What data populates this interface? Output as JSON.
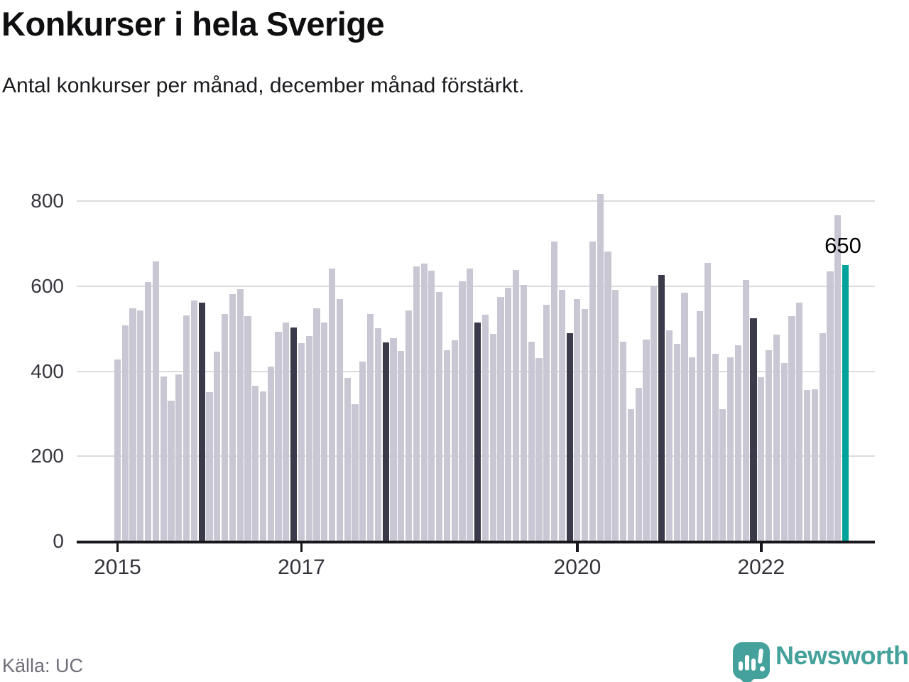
{
  "page": {
    "title": "Konkurser i hela Sverige",
    "subtitle": "Antal konkurser per månad, december månad förstärkt.",
    "source": "Källa: UC",
    "brand": "Newsworthy"
  },
  "chart_data": {
    "type": "bar",
    "title": "Konkurser i hela Sverige",
    "subtitle": "Antal konkurser per månad, december månad förstärkt.",
    "x_start_month": "2015-01",
    "x_frequency": "monthly",
    "values": [
      427,
      508,
      548,
      542,
      610,
      658,
      387,
      330,
      392,
      531,
      566,
      561,
      350,
      446,
      534,
      582,
      593,
      529,
      366,
      353,
      411,
      493,
      515,
      503,
      466,
      483,
      548,
      514,
      642,
      570,
      384,
      322,
      423,
      534,
      501,
      467,
      478,
      447,
      543,
      647,
      653,
      637,
      586,
      450,
      473,
      611,
      642,
      514,
      533,
      487,
      574,
      596,
      638,
      603,
      470,
      431,
      556,
      704,
      592,
      490,
      569,
      546,
      705,
      817,
      681,
      591,
      470,
      310,
      361,
      475,
      601,
      627,
      496,
      464,
      584,
      433,
      541,
      654,
      441,
      311,
      432,
      461,
      614,
      525,
      385,
      450,
      486,
      420,
      530,
      562,
      356,
      357,
      490,
      635,
      766,
      650
    ],
    "december_highlight_indices": [
      11,
      23,
      35,
      47,
      59,
      71,
      83
    ],
    "final_highlight_index": 95,
    "final_highlight_label": "650",
    "yticks": [
      "0",
      "200",
      "400",
      "600",
      "800"
    ],
    "ylim": [
      0,
      830
    ],
    "xticks": [
      {
        "label": "2015",
        "month_index": 0
      },
      {
        "label": "2017",
        "month_index": 24
      },
      {
        "label": "2020",
        "month_index": 60
      },
      {
        "label": "2022",
        "month_index": 84
      }
    ],
    "grid": "horizontal",
    "legend": "none",
    "colors": {
      "bar_normal": "#c9c7d3",
      "bar_december": "#3a3a4b",
      "bar_highlight": "#00a29a",
      "gridline": "#dcdcdc",
      "axis": "#17171c",
      "brand_teal": "#45a19b"
    },
    "source": "Källa: UC",
    "brand": "Newsworthy"
  }
}
